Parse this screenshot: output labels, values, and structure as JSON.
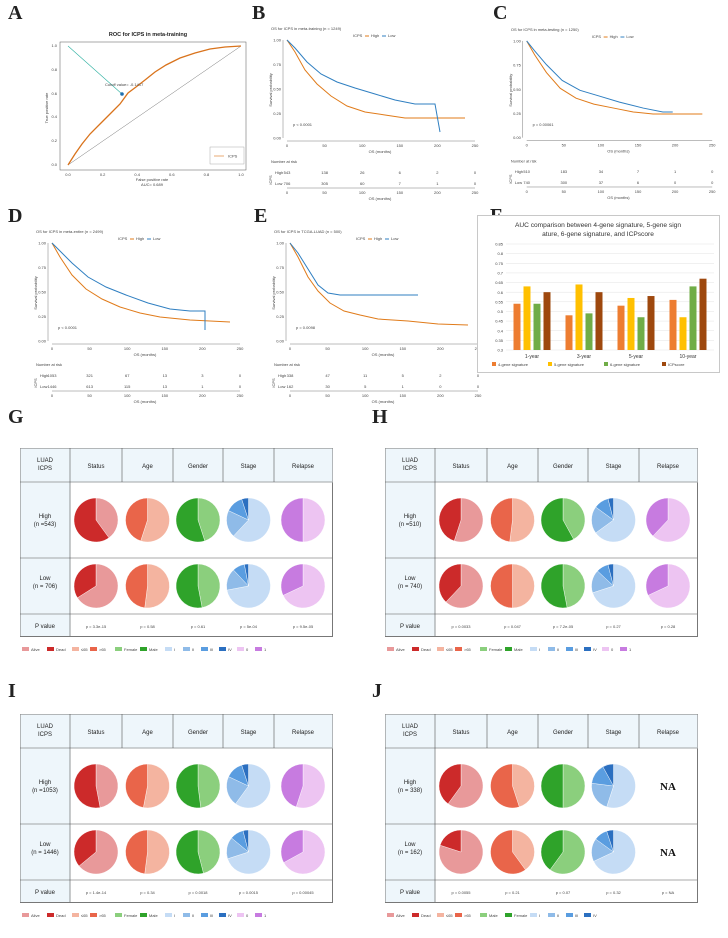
{
  "panel_letters": {
    "A": "A",
    "B": "B",
    "C": "C",
    "D": "D",
    "E": "E",
    "F": "F",
    "G": "G",
    "H": "H",
    "I": "I",
    "J": "J"
  },
  "panelA": {
    "title": "ROC for ICPS in meta-training",
    "xlabel": "False positive rate",
    "ylabel": "True positive rate",
    "auc": "AUC= 0.689",
    "cutoff": "Cutoff value= -0.1417",
    "legend": "ICPS",
    "xticks": [
      "0.0",
      "0.2",
      "0.4",
      "0.6",
      "0.8",
      "1.0"
    ],
    "yticks": [
      "0.0",
      "0.2",
      "0.4",
      "0.6",
      "0.8",
      "1.0"
    ]
  },
  "km": {
    "ylabel": "Survival probability",
    "xlabel": "OS (months)",
    "risk_title": "Number at risk",
    "legend_icps": "ICPS",
    "legend_high": "High",
    "legend_low": "Low",
    "risk_ylabel": "ICPS",
    "xticks": [
      "0",
      "50",
      "100",
      "150",
      "200",
      "250"
    ],
    "yticks": [
      "0.00",
      "0.25",
      "0.50",
      "0.75",
      "1.00"
    ],
    "colors": {
      "high": "#e07b1a",
      "low": "#2f7fc1"
    }
  },
  "panelB": {
    "title": "OS for ICPS in meta-training (n = 1249)",
    "pvalue": "p < 0.0001",
    "risk_high": [
      "543",
      "138",
      "26",
      "6",
      "2",
      "0"
    ],
    "risk_low": [
      "706",
      "305",
      "60",
      "7",
      "1",
      "0"
    ]
  },
  "panelC": {
    "title": "OS for ICPS in meta-testing (n = 1250)",
    "pvalue": "p = 0.00061",
    "risk_high": [
      "510",
      "183",
      "34",
      "7",
      "1",
      "0"
    ],
    "risk_low": [
      "740",
      "300",
      "37",
      "6",
      "0",
      "0"
    ]
  },
  "panelD": {
    "title": "OS for ICPS in meta-entire (n = 2499)",
    "pvalue": "p < 0.0001",
    "risk_high": [
      "1053",
      "321",
      "67",
      "13",
      "3",
      "0"
    ],
    "risk_low": [
      "1446",
      "613",
      "115",
      "13",
      "1",
      "0"
    ]
  },
  "panelE": {
    "title": "OS for ICPS in TCGA-LUAD (n = 500)",
    "pvalue": "p = 0.0098",
    "risk_high": [
      "338",
      "47",
      "11",
      "5",
      "2",
      "0"
    ],
    "risk_low": [
      "162",
      "30",
      "5",
      "1",
      "0",
      "0"
    ]
  },
  "chart_data": {
    "type": "bar",
    "title": "AUC comparison between 4-gene signature, 5-gene signature, 6-gene signature,  and ICPscore",
    "categories": [
      "1-year",
      "3-year",
      "5-year",
      "10-year"
    ],
    "series": [
      {
        "name": "4-gene signature",
        "color": "#ed7d31",
        "values": [
          0.54,
          0.48,
          0.53,
          0.56
        ]
      },
      {
        "name": "5-gene signature",
        "color": "#ffc000",
        "values": [
          0.63,
          0.64,
          0.57,
          0.47
        ]
      },
      {
        "name": "6-gene signature",
        "color": "#70ad47",
        "values": [
          0.54,
          0.49,
          0.47,
          0.63
        ]
      },
      {
        "name": "ICPscore",
        "color": "#9e480e",
        "values": [
          0.6,
          0.6,
          0.58,
          0.67
        ]
      }
    ],
    "yticks": [
      "0.3",
      "0.35",
      "0.4",
      "0.45",
      "0.5",
      "0.55",
      "0.6",
      "0.65",
      "0.7",
      "0.75",
      "0.8",
      "0.85"
    ],
    "ylim": [
      0.3,
      0.85
    ],
    "legend_position": "bottom"
  },
  "pie_tables": {
    "header_first": [
      "LUAD",
      "ICPS"
    ],
    "headers": [
      "Status",
      "Age",
      "Gender",
      "Stage",
      "Relapse"
    ],
    "pvalue_label": "P value",
    "G": {
      "high_label": [
        "High",
        "(n =543)"
      ],
      "low_label": [
        "Low",
        "(n = 706)"
      ],
      "pvalues": [
        "p = 3.3e-15",
        "p = 0.58",
        "p = 0.61",
        "p = 5e-04",
        "p = 9.5e-05"
      ],
      "legend": [
        "Alive",
        "Dead",
        "≤65",
        "&gt;65",
        "Female",
        "Male",
        "I",
        "II",
        "III",
        "IV",
        "0",
        "1"
      ]
    },
    "H": {
      "high_label": [
        "High",
        "(n =510)"
      ],
      "low_label": [
        "Low",
        "(n = 740)"
      ],
      "pvalues": [
        "p = 0.0033",
        "p = 0.047",
        "p = 7.2e-05",
        "p = 0.27",
        "p = 0.28"
      ],
      "legend": [
        "Alive",
        "Dead",
        "≤65",
        "&gt;65",
        "Female",
        "Male",
        "I",
        "II",
        "III",
        "IV",
        "0",
        "1"
      ]
    },
    "I": {
      "high_label": [
        "High",
        "(n =1053)"
      ],
      "low_label": [
        "Low",
        "(n = 1446)"
      ],
      "pvalues": [
        "p = 1.4e-14",
        "p = 0.34",
        "p = 0.0018",
        "p = 0.0015",
        "p = 0.00045"
      ],
      "legend": [
        "Alive",
        "Dead",
        "≤65",
        "&gt;65",
        "Female",
        "Male",
        "I",
        "II",
        "III",
        "IV",
        "0",
        "1"
      ]
    },
    "J": {
      "high_label": [
        "High",
        "(n = 338)"
      ],
      "low_label": [
        "Low",
        "(n = 162)"
      ],
      "pvalues": [
        "p = 0.0055",
        "p = 0.21",
        "p = 0.07",
        "p = 0.32",
        "p = NA"
      ],
      "na": "NA",
      "legend": [
        "Alive",
        "Dead",
        "≤65",
        "&gt;65",
        "Male",
        "Female",
        "I",
        "II",
        "III",
        "IV"
      ]
    }
  },
  "pie_colors": {
    "status": [
      "#e8999a",
      "#cc2a2a"
    ],
    "age": [
      "#f4b4a0",
      "#e9654a"
    ],
    "gender": [
      "#8bcf7d",
      "#2fa32a"
    ],
    "stage": [
      "#c5dcf5",
      "#8fbbe8",
      "#5a9de0",
      "#2b6fc0"
    ],
    "relapse": [
      "#edc4f2",
      "#c77be0"
    ]
  }
}
